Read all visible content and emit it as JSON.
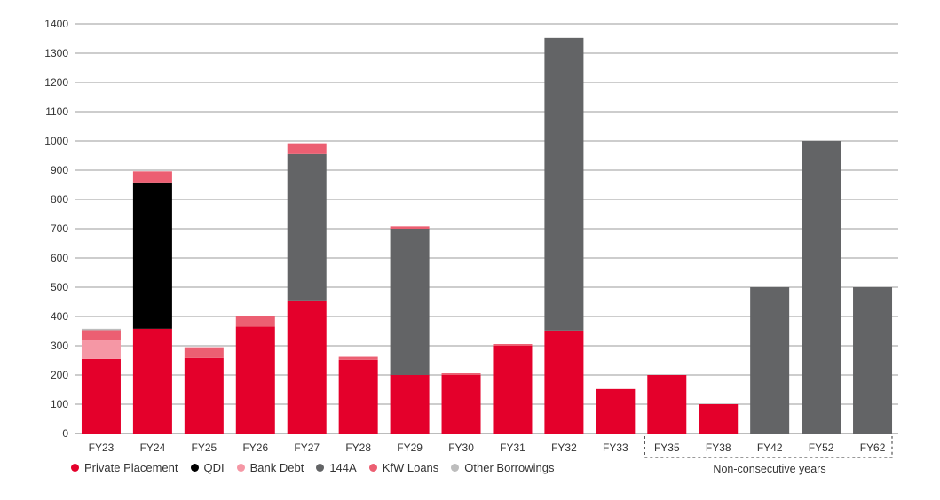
{
  "chart_data": {
    "type": "bar",
    "stacked": true,
    "title": "",
    "xlabel": "",
    "ylabel": "",
    "ylim": [
      0,
      1400
    ],
    "yticks": [
      0,
      100,
      200,
      300,
      400,
      500,
      600,
      700,
      800,
      900,
      1000,
      1100,
      1200,
      1300,
      1400
    ],
    "grid": true,
    "legend_position": "bottom-left",
    "categories": [
      "FY23",
      "FY24",
      "FY25",
      "FY26",
      "FY27",
      "FY28",
      "FY29",
      "FY30",
      "FY31",
      "FY32",
      "FY33",
      "FY35",
      "FY38",
      "FY42",
      "FY52",
      "FY62"
    ],
    "series": [
      {
        "name": "Private Placement",
        "color": "#e4002b",
        "values": [
          255,
          358,
          258,
          365,
          455,
          252,
          200,
          200,
          300,
          352,
          152,
          200,
          100,
          0,
          0,
          0
        ]
      },
      {
        "name": "QDI",
        "color": "#000000",
        "values": [
          0,
          500,
          0,
          0,
          0,
          0,
          0,
          0,
          0,
          0,
          0,
          0,
          0,
          0,
          0,
          0
        ]
      },
      {
        "name": "Bank Debt",
        "color": "#f597a5",
        "values": [
          63,
          0,
          0,
          0,
          0,
          0,
          0,
          0,
          0,
          0,
          0,
          0,
          0,
          0,
          0,
          0
        ]
      },
      {
        "name": "144A",
        "color": "#636466",
        "values": [
          0,
          0,
          0,
          0,
          500,
          0,
          500,
          0,
          0,
          1000,
          0,
          0,
          0,
          500,
          1000,
          500
        ]
      },
      {
        "name": "KfW Loans",
        "color": "#ec5f72",
        "values": [
          35,
          38,
          37,
          35,
          37,
          10,
          8,
          6,
          6,
          0,
          0,
          0,
          0,
          0,
          0,
          0
        ]
      },
      {
        "name": "Other Borrowings",
        "color": "#bdbdbd",
        "values": [
          5,
          0,
          0,
          0,
          0,
          0,
          0,
          0,
          0,
          0,
          0,
          0,
          0,
          0,
          0,
          0
        ]
      }
    ],
    "annotations": [
      {
        "text": "Non-consecutive years",
        "categories": [
          "FY35",
          "FY38",
          "FY42",
          "FY52",
          "FY62"
        ],
        "style": "dashed-box"
      }
    ]
  }
}
